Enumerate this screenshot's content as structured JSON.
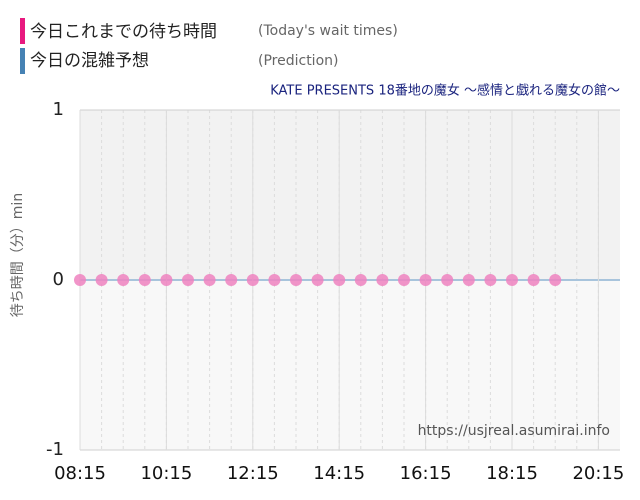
{
  "chart_data": {
    "type": "scatter",
    "subtitle": "KATE PRESENTS 18番地の魔女 ～感情と戯れる魔女の館～",
    "y_label": "待ち時間（分）min",
    "watermark": "https://usjreal.asumirai.info",
    "x": [
      "08:15",
      "08:45",
      "09:15",
      "09:45",
      "10:15",
      "10:45",
      "11:15",
      "11:45",
      "12:15",
      "12:45",
      "13:15",
      "13:45",
      "14:15",
      "14:45",
      "15:15",
      "15:45",
      "16:15",
      "16:45",
      "17:15",
      "17:45",
      "18:15",
      "18:45",
      "19:15"
    ],
    "series": [
      {
        "name": "今日これまでの待ち時間",
        "note": "(Today's wait times)",
        "legend_color": "#e8197f",
        "color": "#ee82c0",
        "values": [
          0,
          0,
          0,
          0,
          0,
          0,
          0,
          0,
          0,
          0,
          0,
          0,
          0,
          0,
          0,
          0,
          0,
          0,
          0,
          0,
          0,
          0,
          0
        ]
      },
      {
        "name": "今日の混雑予想",
        "note": "(Prediction)",
        "legend_color": "#4682b4",
        "color": "#a8c4dc",
        "values": [
          null,
          null,
          null,
          null,
          null,
          null,
          null,
          null,
          null,
          null,
          null,
          null,
          null,
          null,
          null,
          null,
          null,
          null,
          null,
          null,
          null,
          null,
          null
        ]
      }
    ],
    "xlim": [
      "08:15",
      "20:45"
    ],
    "xticks": [
      "08:15",
      "10:15",
      "12:15",
      "14:15",
      "16:15",
      "18:15",
      "20:15"
    ],
    "ylim": [
      -1,
      1
    ],
    "yticks": [
      -1,
      0,
      1
    ],
    "grid": true
  }
}
